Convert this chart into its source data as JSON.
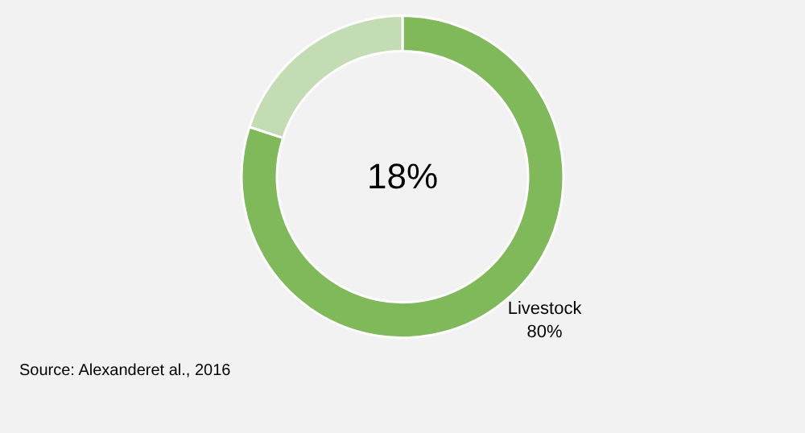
{
  "chart_data": {
    "type": "donut",
    "categories": [
      "Livestock",
      null
    ],
    "values": [
      80,
      20
    ],
    "value_labels": [
      "80%",
      null
    ],
    "colors": [
      "#80b95a",
      "#c3dcb4"
    ],
    "annotations": [
      "18%",
      "Source: Alexanderet al., 2016"
    ],
    "legend": false
  }
}
